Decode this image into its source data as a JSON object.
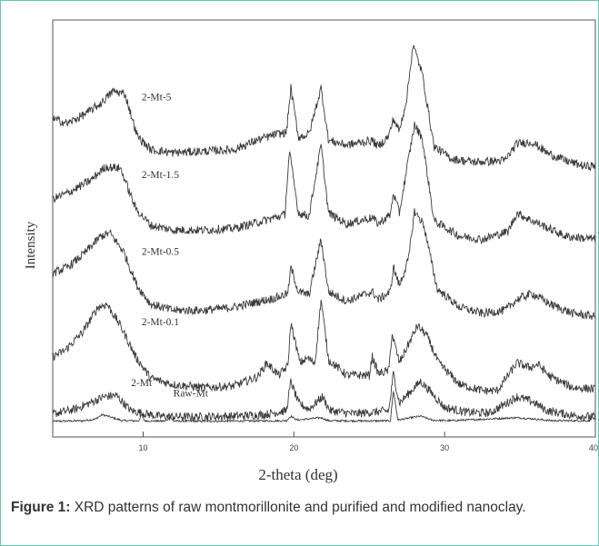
{
  "chart_data": {
    "type": "line",
    "xlabel": "2-theta (deg)",
    "ylabel": "Intensity",
    "xlim": [
      4,
      40
    ],
    "xticks": [
      10,
      20,
      30,
      40
    ],
    "grid": false,
    "line_color": "#3a3a3a",
    "series": [
      {
        "name": "Raw-Mt",
        "points": [
          [
            4,
            0.02
          ],
          [
            6,
            0.05
          ],
          [
            6.8,
            0.15
          ],
          [
            7.3,
            0.45
          ],
          [
            7.8,
            0.3
          ],
          [
            8.6,
            0.06
          ],
          [
            9.7,
            0.04
          ],
          [
            9.9,
            0.45
          ],
          [
            10.1,
            0.04
          ],
          [
            11.5,
            0.03
          ],
          [
            11.8,
            0.3
          ],
          [
            12.0,
            0.03
          ],
          [
            14,
            0.02
          ],
          [
            19.5,
            0.05
          ],
          [
            19.8,
            0.35
          ],
          [
            20.2,
            0.1
          ],
          [
            20.8,
            0.15
          ],
          [
            21.8,
            0.25
          ],
          [
            22.3,
            0.05
          ],
          [
            25,
            0.04
          ],
          [
            26.4,
            0.05
          ],
          [
            26.6,
            2.0
          ],
          [
            26.9,
            0.1
          ],
          [
            28.4,
            0.35
          ],
          [
            29.2,
            0.08
          ],
          [
            30.5,
            0.06
          ],
          [
            34.8,
            0.25
          ],
          [
            35.8,
            0.18
          ],
          [
            37,
            0.06
          ],
          [
            39.6,
            0.05
          ],
          [
            39.8,
            0.3
          ],
          [
            40,
            0.05
          ]
        ]
      },
      {
        "name": "2-Mt",
        "points": [
          [
            4,
            0.5
          ],
          [
            5.5,
            0.8
          ],
          [
            7.4,
            1.6
          ],
          [
            8.2,
            1.7
          ],
          [
            9.2,
            0.7
          ],
          [
            11,
            0.35
          ],
          [
            13,
            0.3
          ],
          [
            16,
            0.35
          ],
          [
            18,
            0.45
          ],
          [
            19.5,
            0.7
          ],
          [
            19.8,
            2.6
          ],
          [
            20.3,
            1.2
          ],
          [
            21,
            0.8
          ],
          [
            21.9,
            1.6
          ],
          [
            22.4,
            0.7
          ],
          [
            24,
            0.5
          ],
          [
            25.2,
            0.6
          ],
          [
            26.3,
            0.7
          ],
          [
            26.6,
            3.1
          ],
          [
            27.0,
            1.2
          ],
          [
            28.4,
            2.6
          ],
          [
            29.0,
            2.0
          ],
          [
            30,
            0.9
          ],
          [
            31.5,
            0.6
          ],
          [
            33,
            0.55
          ],
          [
            34.8,
            1.6
          ],
          [
            35.8,
            1.3
          ],
          [
            36.8,
            0.7
          ],
          [
            38.5,
            0.4
          ],
          [
            40,
            0.3
          ]
        ]
      },
      {
        "name": "2-Mt-0.1",
        "points": [
          [
            4,
            4.2
          ],
          [
            4.8,
            4.6
          ],
          [
            6,
            5.8
          ],
          [
            7,
            7.4
          ],
          [
            7.6,
            7.6
          ],
          [
            8.5,
            6.2
          ],
          [
            9.5,
            4.2
          ],
          [
            10.5,
            2.8
          ],
          [
            12,
            2.4
          ],
          [
            14,
            2.2
          ],
          [
            16,
            2.3
          ],
          [
            17.6,
            2.9
          ],
          [
            18.2,
            3.8
          ],
          [
            19,
            3.0
          ],
          [
            19.6,
            3.6
          ],
          [
            19.8,
            6.4
          ],
          [
            20.4,
            3.8
          ],
          [
            20.9,
            4.1
          ],
          [
            21.4,
            3.8
          ],
          [
            21.8,
            7.9
          ],
          [
            22.3,
            4.0
          ],
          [
            23.5,
            3.0
          ],
          [
            25.0,
            3.0
          ],
          [
            25.2,
            4.2
          ],
          [
            25.6,
            3.1
          ],
          [
            26.3,
            3.3
          ],
          [
            26.5,
            5.7
          ],
          [
            27.0,
            3.8
          ],
          [
            27.6,
            5.0
          ],
          [
            28.2,
            6.2
          ],
          [
            28.8,
            5.6
          ],
          [
            29.6,
            3.8
          ],
          [
            31,
            2.4
          ],
          [
            32.5,
            2.0
          ],
          [
            33.5,
            2.0
          ],
          [
            34.8,
            3.8
          ],
          [
            35.6,
            3.5
          ],
          [
            36.2,
            3.7
          ],
          [
            37,
            2.9
          ],
          [
            38.5,
            2.2
          ],
          [
            40,
            2.1
          ]
        ]
      },
      {
        "name": "2-Mt-0.5",
        "points": [
          [
            4,
            9.6
          ],
          [
            5,
            10.0
          ],
          [
            6,
            10.8
          ],
          [
            7.2,
            12.0
          ],
          [
            7.8,
            12.2
          ],
          [
            8.7,
            11.0
          ],
          [
            9.6,
            8.8
          ],
          [
            10.5,
            7.6
          ],
          [
            12,
            7.2
          ],
          [
            14,
            7.2
          ],
          [
            16,
            7.4
          ],
          [
            17.8,
            7.8
          ],
          [
            18.8,
            8.0
          ],
          [
            19.6,
            8.3
          ],
          [
            19.8,
            10.0
          ],
          [
            20.3,
            8.4
          ],
          [
            21.0,
            8.2
          ],
          [
            21.8,
            11.8
          ],
          [
            22.3,
            8.4
          ],
          [
            23.5,
            7.8
          ],
          [
            25.2,
            8.4
          ],
          [
            25.6,
            7.9
          ],
          [
            26.4,
            8.4
          ],
          [
            26.6,
            10.0
          ],
          [
            27.0,
            8.8
          ],
          [
            27.6,
            10.5
          ],
          [
            28.0,
            13.6
          ],
          [
            28.6,
            12.8
          ],
          [
            29.5,
            8.6
          ],
          [
            31,
            7.4
          ],
          [
            32.5,
            7.0
          ],
          [
            34,
            7.2
          ],
          [
            34.8,
            7.9
          ],
          [
            35.8,
            8.3
          ],
          [
            37,
            7.6
          ],
          [
            38.5,
            7.0
          ],
          [
            40,
            6.8
          ]
        ]
      },
      {
        "name": "2-Mt-1.5",
        "points": [
          [
            4,
            14.4
          ],
          [
            5,
            14.8
          ],
          [
            6.5,
            15.6
          ],
          [
            7.5,
            16.5
          ],
          [
            8.5,
            16.4
          ],
          [
            9.5,
            13.8
          ],
          [
            10.5,
            12.7
          ],
          [
            12,
            12.4
          ],
          [
            14,
            12.4
          ],
          [
            16,
            12.5
          ],
          [
            18,
            13.0
          ],
          [
            19.4,
            13.4
          ],
          [
            19.7,
            17.5
          ],
          [
            20.3,
            13.5
          ],
          [
            21.0,
            13.3
          ],
          [
            21.8,
            17.9
          ],
          [
            22.3,
            13.5
          ],
          [
            23.5,
            12.8
          ],
          [
            25.2,
            13.2
          ],
          [
            25.6,
            12.8
          ],
          [
            26.4,
            13.4
          ],
          [
            26.6,
            14.8
          ],
          [
            27.0,
            13.5
          ],
          [
            27.6,
            17.0
          ],
          [
            28.0,
            19.2
          ],
          [
            28.5,
            18.4
          ],
          [
            29.3,
            13.0
          ],
          [
            31,
            12.0
          ],
          [
            32.5,
            11.8
          ],
          [
            34.2,
            12.3
          ],
          [
            34.8,
            13.5
          ],
          [
            35.6,
            13.1
          ],
          [
            36.5,
            12.7
          ],
          [
            38,
            12.0
          ],
          [
            40,
            11.8
          ]
        ]
      },
      {
        "name": "2-Mt-5",
        "points": [
          [
            4,
            19.6
          ],
          [
            5,
            19.3
          ],
          [
            6.3,
            20.0
          ],
          [
            7.2,
            20.6
          ],
          [
            8.0,
            21.4
          ],
          [
            8.8,
            21.2
          ],
          [
            9.6,
            18.5
          ],
          [
            10.5,
            17.6
          ],
          [
            12,
            17.4
          ],
          [
            14,
            17.5
          ],
          [
            16,
            17.6
          ],
          [
            17.5,
            18.2
          ],
          [
            18.8,
            18.6
          ],
          [
            19.5,
            18.7
          ],
          [
            19.8,
            21.6
          ],
          [
            20.3,
            18.4
          ],
          [
            21.0,
            18.6
          ],
          [
            21.8,
            21.6
          ],
          [
            22.3,
            18.2
          ],
          [
            23.5,
            17.9
          ],
          [
            25.2,
            18.2
          ],
          [
            25.6,
            17.8
          ],
          [
            26.3,
            18.5
          ],
          [
            26.6,
            19.6
          ],
          [
            27.0,
            18.8
          ],
          [
            27.5,
            21.0
          ],
          [
            27.9,
            24.4
          ],
          [
            28.5,
            22.6
          ],
          [
            29.3,
            17.8
          ],
          [
            30.5,
            17.0
          ],
          [
            32,
            16.8
          ],
          [
            34,
            16.9
          ],
          [
            34.8,
            18.0
          ],
          [
            35.8,
            18.1
          ],
          [
            36.8,
            17.4
          ],
          [
            38,
            16.9
          ],
          [
            39.4,
            16.5
          ],
          [
            40,
            16.6
          ]
        ]
      }
    ]
  },
  "caption": {
    "label": "Figure 1:",
    "text": " XRD patterns of raw montmorillonite and purified and modified nanoclay."
  }
}
